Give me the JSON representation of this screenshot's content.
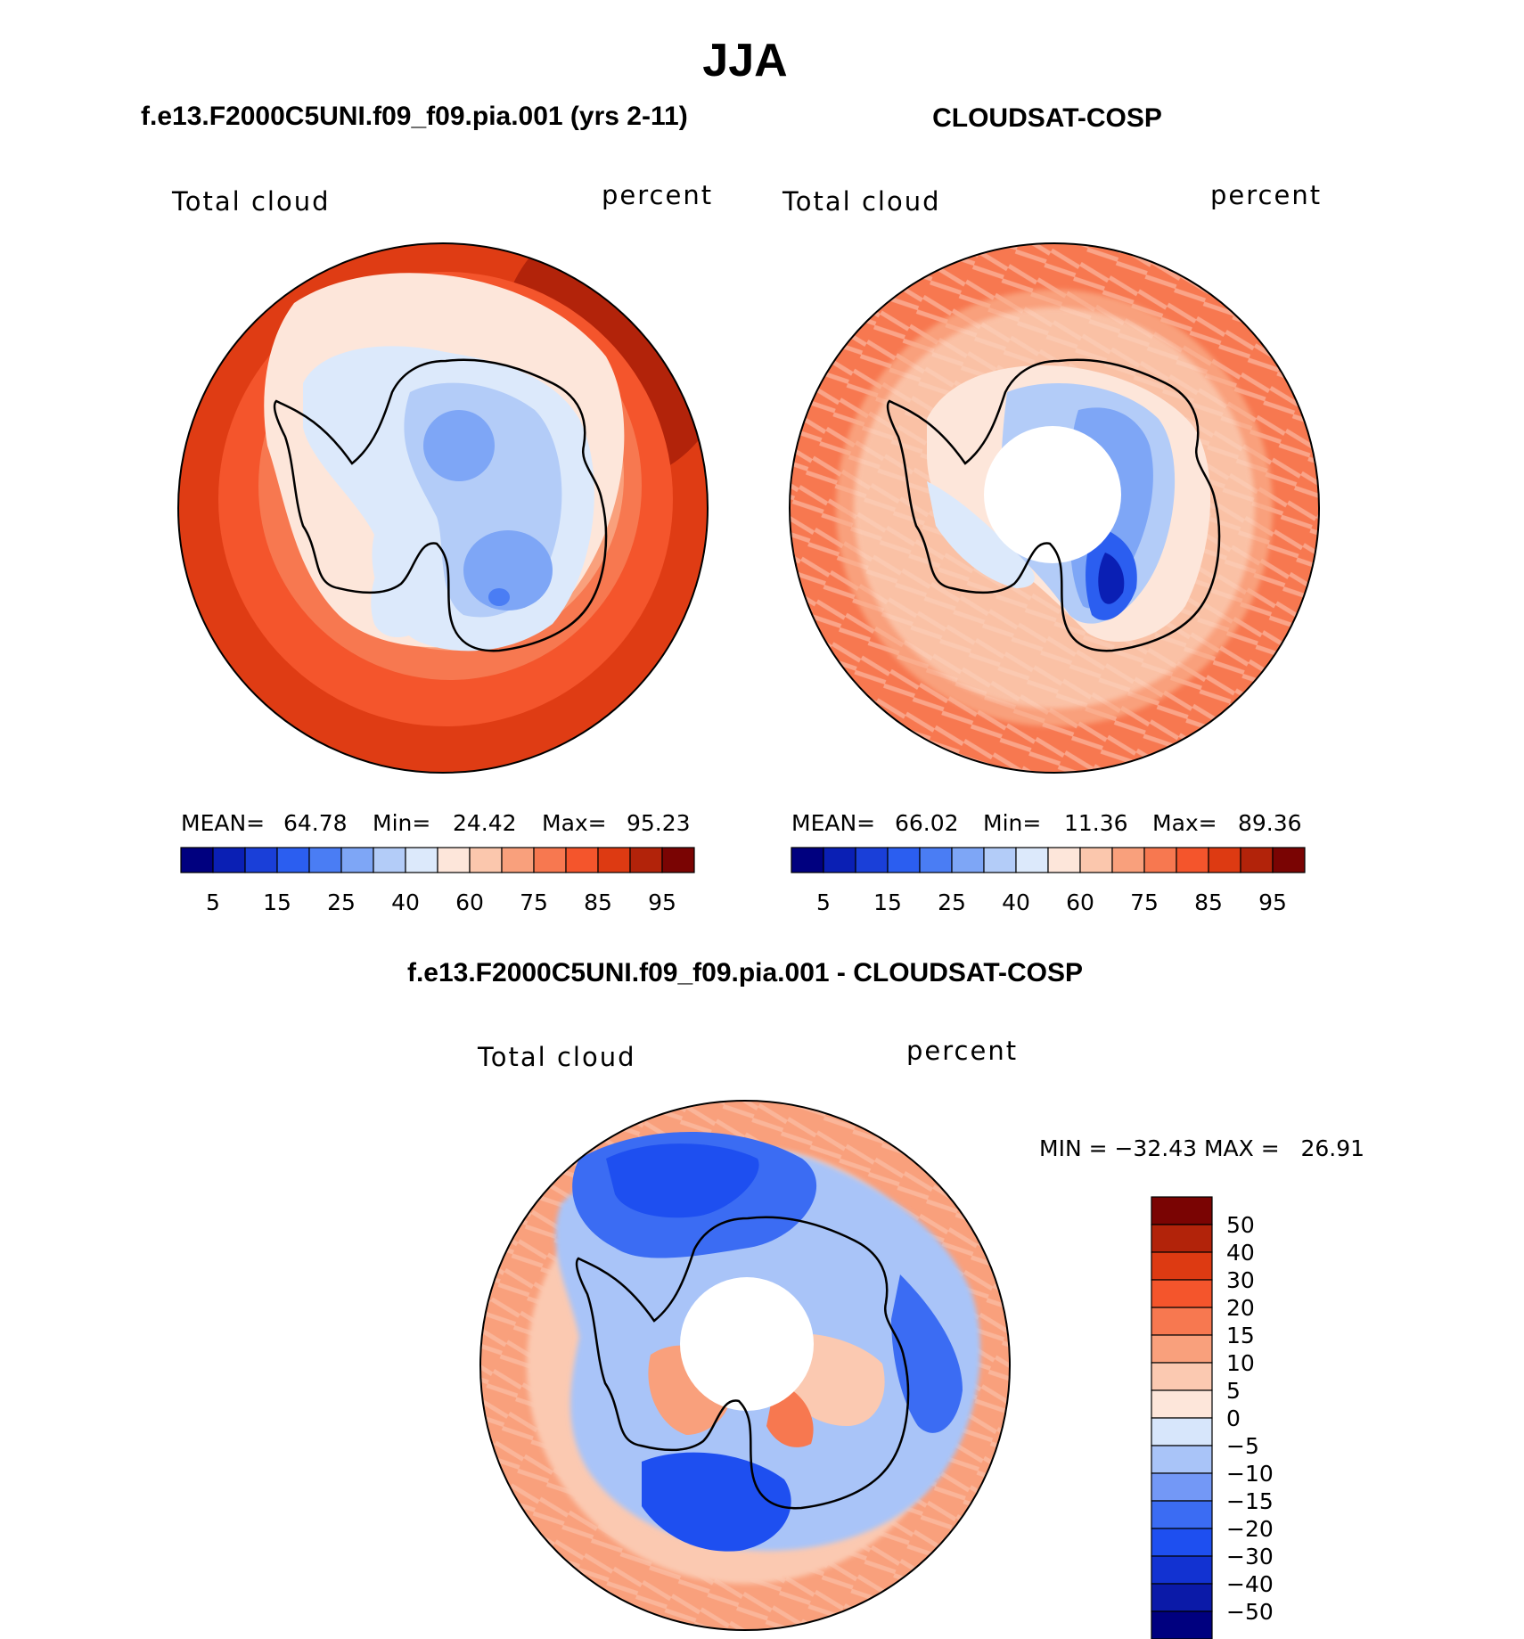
{
  "figure": {
    "season": "JJA",
    "colors": {
      "abs_scale": [
        "#00007f",
        "#0a1fb4",
        "#1a3fd8",
        "#2b5ef0",
        "#4a7df4",
        "#7ea6f6",
        "#b3ccf8",
        "#dce9fb",
        "#fde6da",
        "#fbc7ad",
        "#f9a07c",
        "#f77850",
        "#f4552c",
        "#dd3a12",
        "#b2230a",
        "#7a0403"
      ],
      "diff_scale": [
        "#00007f",
        "#0b1aa8",
        "#1232d1",
        "#1e4ff0",
        "#3b6cf3",
        "#7398f6",
        "#a9c4f8",
        "#d7e6fb",
        "#fde6da",
        "#fbc9b1",
        "#f9a07c",
        "#f77850",
        "#f4552c",
        "#dd3a12",
        "#b2230a",
        "#7a0403"
      ],
      "coastline": "#000000"
    },
    "panel_left": {
      "title": "f.e13.F2000C5UNI.f09_f09.pia.001 (yrs 2-11)",
      "variable": "Total cloud",
      "units": "percent",
      "stats": {
        "mean_label": "MEAN=",
        "mean": "64.78",
        "min_label": "Min=",
        "min": "24.42",
        "max_label": "Max=",
        "max": "95.23"
      },
      "colorbar_ticks": [
        "5",
        "15",
        "25",
        "40",
        "60",
        "75",
        "85",
        "95"
      ]
    },
    "panel_right": {
      "title": "CLOUDSAT-COSP",
      "variable": "Total cloud",
      "units": "percent",
      "stats": {
        "mean_label": "MEAN=",
        "mean": "66.02",
        "min_label": "Min=",
        "min": "11.36",
        "max_label": "Max=",
        "max": "89.36"
      },
      "colorbar_ticks": [
        "5",
        "15",
        "25",
        "40",
        "60",
        "75",
        "85",
        "95"
      ]
    },
    "panel_diff": {
      "title": "f.e13.F2000C5UNI.f09_f09.pia.001 - CLOUDSAT-COSP",
      "variable": "Total cloud",
      "units": "percent",
      "minmax_text": "MIN = −32.43 MAX =   26.91",
      "colorbar_labels": [
        "50",
        "40",
        "30",
        "20",
        "15",
        "10",
        "5",
        "0",
        "−5",
        "−10",
        "−15",
        "−20",
        "−30",
        "−40",
        "−50"
      ]
    }
  }
}
